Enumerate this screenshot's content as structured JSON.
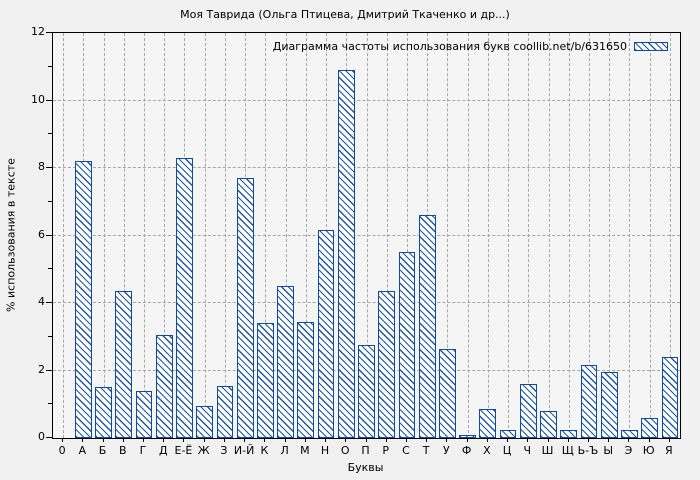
{
  "page": {
    "background": "#f1f1f1",
    "plot_background": "#f5f5f6"
  },
  "chart_data": {
    "type": "bar",
    "title": "Моя Таврида (Ольга Птицева, Дмитрий Ткаченко и др...)",
    "legend_label": "Диаграмма частоты использования букв coollib.net/b/631650",
    "legend_position": "top-right-inside",
    "xlabel": "Буквы",
    "ylabel": "% использования в тексте",
    "ylim": [
      0,
      12
    ],
    "yticks": [
      0,
      2,
      4,
      6,
      8,
      10,
      12
    ],
    "yminor_step": 1,
    "grid": true,
    "categories": [
      "0",
      "А",
      "Б",
      "В",
      "Г",
      "Д",
      "Е-Ё",
      "Ж",
      "З",
      "И-Й",
      "К",
      "Л",
      "М",
      "Н",
      "О",
      "П",
      "Р",
      "С",
      "Т",
      "У",
      "Ф",
      "Х",
      "Ц",
      "Ч",
      "Ш",
      "Щ",
      "Ь-Ъ",
      "Ы",
      "Э",
      "Ю",
      "Я"
    ],
    "values": [
      0,
      8.2,
      1.5,
      4.35,
      1.4,
      3.05,
      8.3,
      0.95,
      1.55,
      7.7,
      3.4,
      4.5,
      3.45,
      6.15,
      10.9,
      2.75,
      4.35,
      5.5,
      6.6,
      2.65,
      0.1,
      0.85,
      0.25,
      1.6,
      0.8,
      0.25,
      2.15,
      1.95,
      0.25,
      0.6,
      2.4
    ],
    "colors": {
      "bar_border": "#0d4aa0",
      "bar_hatch": "#1d55a8",
      "bar_fill": "#ffffff",
      "grid": "#a6a6a6",
      "axis": "#000000",
      "text": "#000000"
    }
  }
}
